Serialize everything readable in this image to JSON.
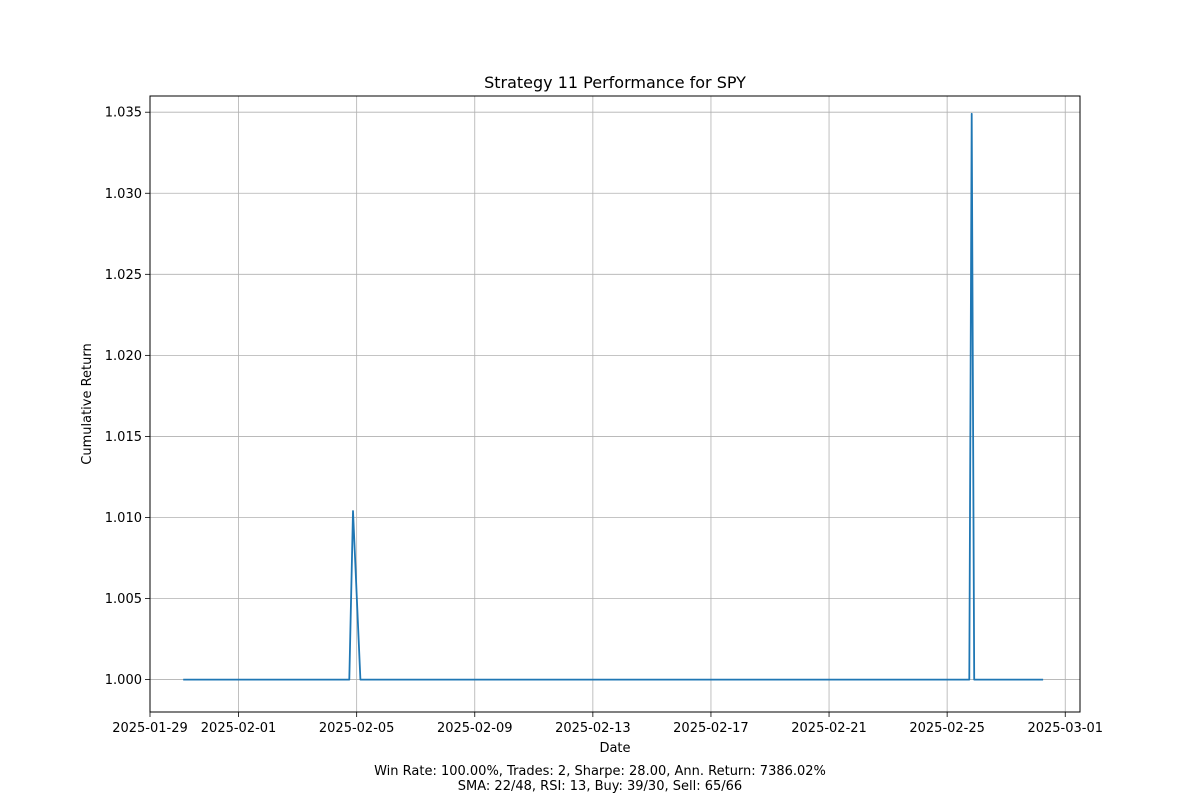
{
  "chart_data": {
    "type": "line",
    "title": "Strategy 11 Performance for SPY",
    "xlabel": "Date",
    "ylabel": "Cumulative Return",
    "xlim": [
      "2025-01-29T00:00",
      "2025-03-01T12:00"
    ],
    "ylim": [
      0.998,
      1.036
    ],
    "grid": true,
    "x_ticks": [
      "2025-01-29",
      "2025-02-01",
      "2025-02-05",
      "2025-02-09",
      "2025-02-13",
      "2025-02-17",
      "2025-02-21",
      "2025-02-25",
      "2025-03-01"
    ],
    "y_ticks": [
      1.0,
      1.005,
      1.01,
      1.015,
      1.02,
      1.025,
      1.03,
      1.035
    ],
    "y_tick_labels": [
      "1.000",
      "1.005",
      "1.010",
      "1.015",
      "1.020",
      "1.025",
      "1.030",
      "1.035"
    ],
    "series": [
      {
        "color": "#1f77b4",
        "points": [
          {
            "x": "2025-01-30T03:00",
            "y": 1.0
          },
          {
            "x": "2025-02-04T18:00",
            "y": 1.0
          },
          {
            "x": "2025-02-04T21:00",
            "y": 1.0104
          },
          {
            "x": "2025-02-05T03:00",
            "y": 1.0
          },
          {
            "x": "2025-02-25T18:00",
            "y": 1.0
          },
          {
            "x": "2025-02-25T20:00",
            "y": 1.0349
          },
          {
            "x": "2025-02-25T22:00",
            "y": 1.0
          },
          {
            "x": "2025-02-28T06:00",
            "y": 1.0
          }
        ]
      }
    ]
  },
  "footer": {
    "line1": "Win Rate: 100.00%, Trades: 2, Sharpe: 28.00, Ann. Return: 7386.02%",
    "line2": "SMA: 22/48, RSI: 13, Buy: 39/30, Sell: 65/66"
  }
}
